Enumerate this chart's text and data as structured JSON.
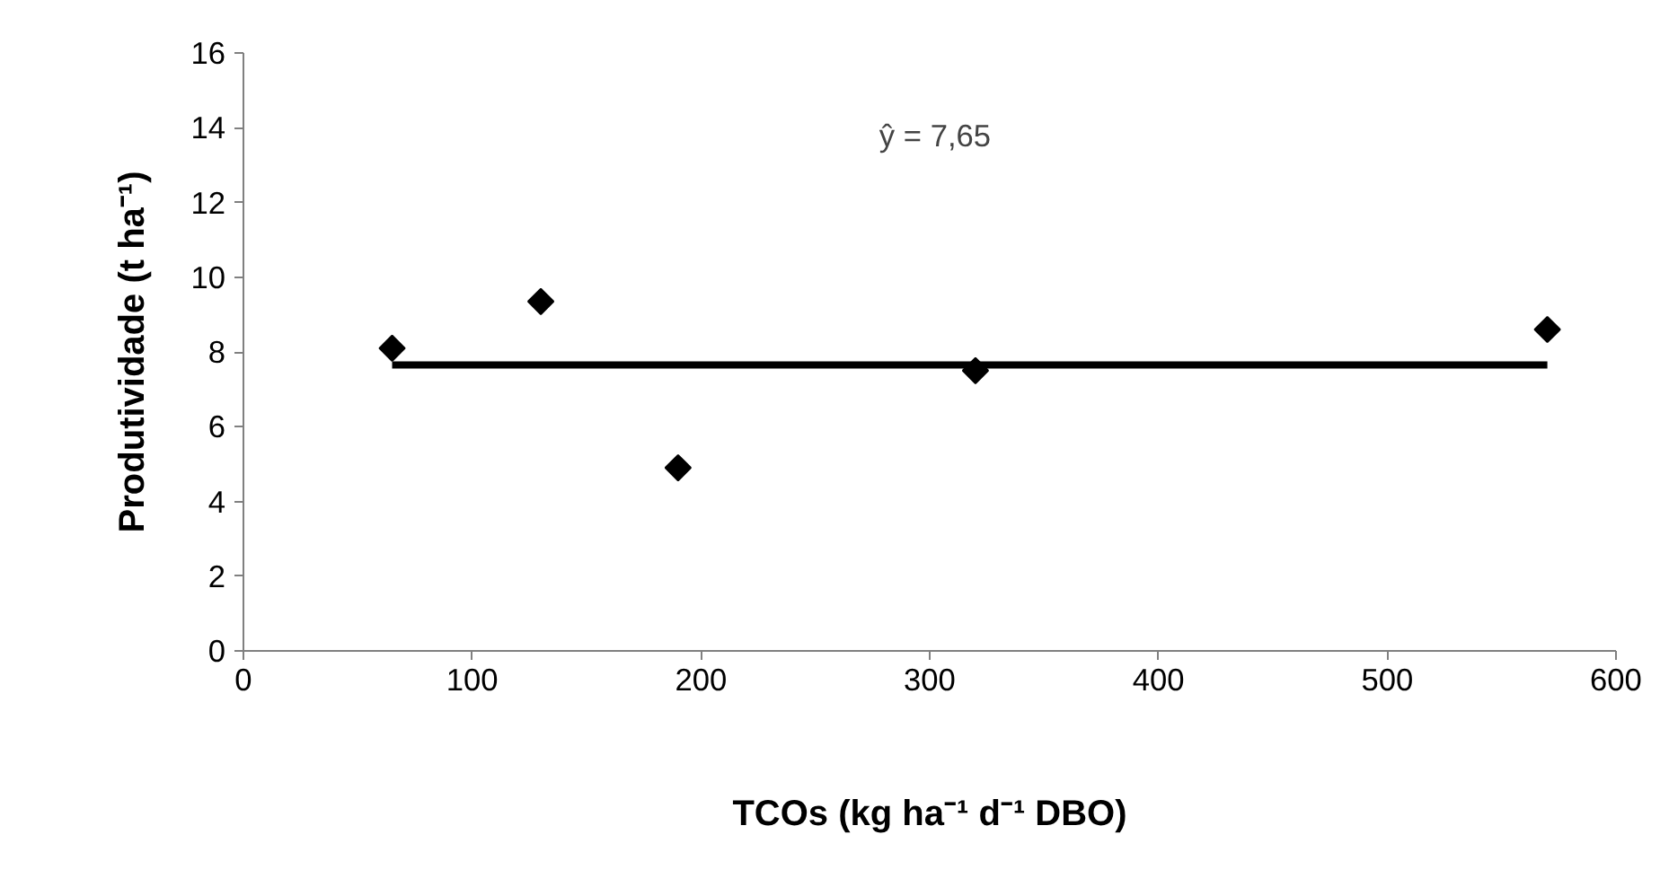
{
  "chart_data": {
    "type": "scatter",
    "xlabel": "TCOs (kg ha⁻¹ d⁻¹ DBO)",
    "ylabel": "Produtividade (t ha⁻¹)",
    "xlim": [
      0,
      600
    ],
    "xticks": [
      0,
      100,
      200,
      300,
      400,
      500,
      600
    ],
    "ylim": [
      0,
      16
    ],
    "yticks": [
      0,
      2,
      4,
      6,
      8,
      10,
      12,
      14,
      16
    ],
    "grid": false,
    "series": [
      {
        "color": "#000000",
        "marker": "diamond",
        "x": [
          65,
          130,
          190,
          320,
          570
        ],
        "values": [
          8.1,
          9.35,
          4.9,
          7.5,
          8.6
        ]
      },
      {
        "type": "line",
        "color": "#000000",
        "x": [
          65,
          570
        ],
        "values": [
          7.65,
          7.65
        ],
        "line_style": "solid"
      }
    ],
    "annotations": [
      "ŷ = 7,65"
    ]
  }
}
